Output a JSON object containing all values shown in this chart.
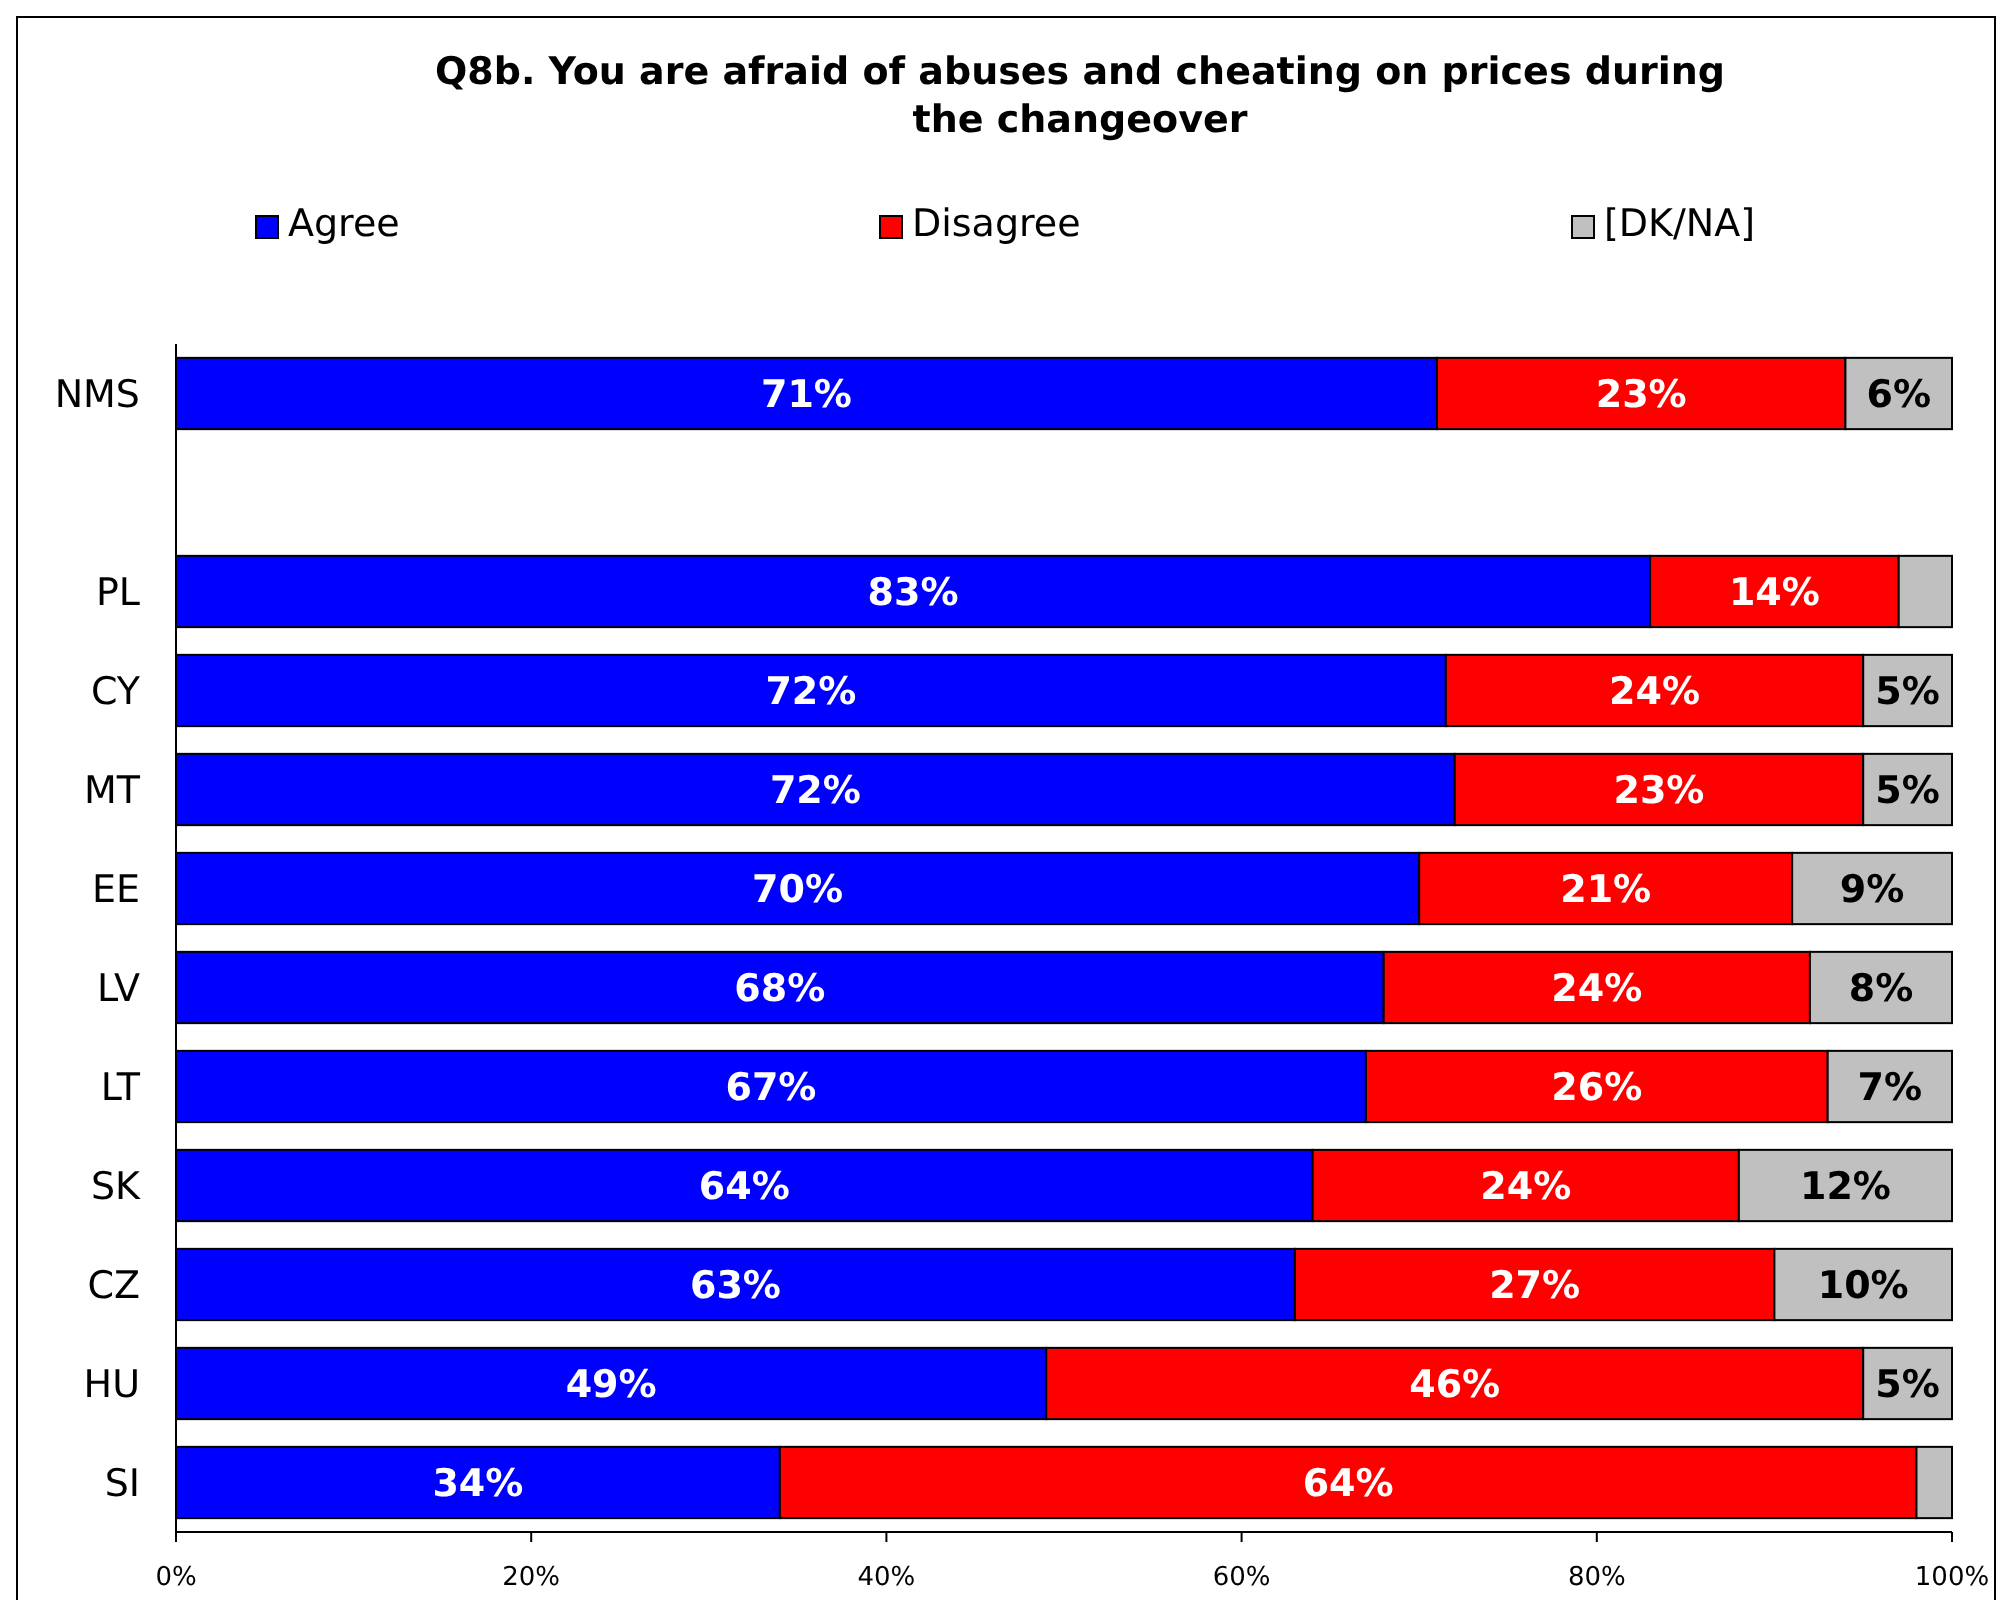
{
  "chart_data": {
    "type": "bar",
    "orientation": "horizontal",
    "stacked": true,
    "title": "Q8b. You are afraid of abuses and cheating on prices during the changeover",
    "categories": [
      "NMS",
      null,
      "PL",
      "CY",
      "MT",
      "EE",
      "LV",
      "LT",
      "SK",
      "CZ",
      "HU",
      "SI"
    ],
    "series": [
      {
        "name": "Agree",
        "color": "#0000ff",
        "values": [
          71,
          null,
          83,
          71.5,
          72,
          70,
          68,
          67,
          64,
          63,
          49,
          34
        ],
        "value_labels": [
          "71%",
          null,
          "83%",
          "72%",
          "72%",
          "70%",
          "68%",
          "67%",
          "64%",
          "63%",
          "49%",
          "34%"
        ]
      },
      {
        "name": "Disagree",
        "color": "#ff0000",
        "values": [
          23,
          null,
          14,
          23.5,
          23,
          21,
          24,
          26,
          24,
          27,
          46,
          64
        ],
        "value_labels": [
          "23%",
          null,
          "14%",
          "24%",
          "23%",
          "21%",
          "24%",
          "26%",
          "24%",
          "27%",
          "46%",
          "64%"
        ]
      },
      {
        "name": "[DK/NA]",
        "color": "#c0c0c0",
        "values": [
          6,
          null,
          3,
          5,
          5,
          9,
          8,
          7,
          12,
          10,
          5,
          2
        ],
        "value_labels": [
          "6%",
          null,
          null,
          "5%",
          "5%",
          "9%",
          "8%",
          "7%",
          "12%",
          "10%",
          "5%",
          null
        ]
      }
    ],
    "xlim": [
      0,
      100
    ],
    "xticks": [
      {
        "value": 0,
        "label": "0%"
      },
      {
        "value": 20,
        "label": "20%"
      },
      {
        "value": 40,
        "label": "40%"
      },
      {
        "value": 60,
        "label": "60%"
      },
      {
        "value": 80,
        "label": "80%"
      },
      {
        "value": 100,
        "label": "100%"
      }
    ],
    "legend": "top",
    "grid": false
  }
}
